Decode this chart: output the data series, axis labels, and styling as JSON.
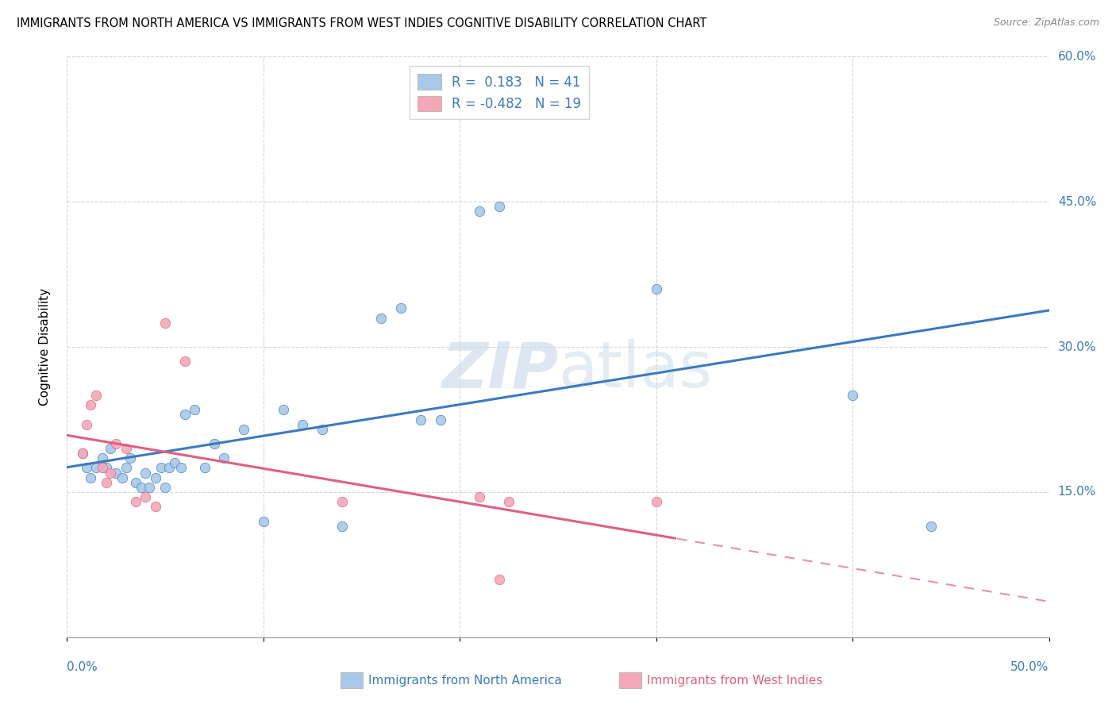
{
  "title": "IMMIGRANTS FROM NORTH AMERICA VS IMMIGRANTS FROM WEST INDIES COGNITIVE DISABILITY CORRELATION CHART",
  "source": "Source: ZipAtlas.com",
  "xlabel_blue": "Immigrants from North America",
  "xlabel_pink": "Immigrants from West Indies",
  "ylabel": "Cognitive Disability",
  "xlim": [
    0,
    0.5
  ],
  "ylim": [
    0,
    0.6
  ],
  "R_blue": 0.183,
  "N_blue": 41,
  "R_pink": -0.482,
  "N_pink": 19,
  "blue_color": "#a8c8e8",
  "pink_color": "#f4a8b8",
  "blue_line_color": "#3a7abf",
  "pink_line_color": "#e06080",
  "watermark_color": "#c8d8e8",
  "blue_scatter_x": [
    0.008,
    0.01,
    0.012,
    0.015,
    0.018,
    0.02,
    0.022,
    0.025,
    0.028,
    0.03,
    0.032,
    0.035,
    0.038,
    0.04,
    0.042,
    0.045,
    0.048,
    0.05,
    0.052,
    0.055,
    0.058,
    0.06,
    0.065,
    0.07,
    0.075,
    0.08,
    0.09,
    0.1,
    0.11,
    0.12,
    0.13,
    0.14,
    0.16,
    0.17,
    0.18,
    0.19,
    0.21,
    0.22,
    0.3,
    0.4,
    0.44
  ],
  "blue_scatter_y": [
    0.19,
    0.175,
    0.165,
    0.175,
    0.185,
    0.175,
    0.195,
    0.17,
    0.165,
    0.175,
    0.185,
    0.16,
    0.155,
    0.17,
    0.155,
    0.165,
    0.175,
    0.155,
    0.175,
    0.18,
    0.175,
    0.23,
    0.235,
    0.175,
    0.2,
    0.185,
    0.215,
    0.12,
    0.235,
    0.22,
    0.215,
    0.115,
    0.33,
    0.34,
    0.225,
    0.225,
    0.44,
    0.445,
    0.36,
    0.25,
    0.115
  ],
  "pink_scatter_x": [
    0.008,
    0.01,
    0.012,
    0.015,
    0.018,
    0.02,
    0.022,
    0.025,
    0.03,
    0.035,
    0.04,
    0.045,
    0.05,
    0.06,
    0.14,
    0.21,
    0.22,
    0.225,
    0.3
  ],
  "pink_scatter_y": [
    0.19,
    0.22,
    0.24,
    0.25,
    0.175,
    0.16,
    0.17,
    0.2,
    0.195,
    0.14,
    0.145,
    0.135,
    0.325,
    0.285,
    0.14,
    0.145,
    0.06,
    0.14,
    0.14
  ]
}
